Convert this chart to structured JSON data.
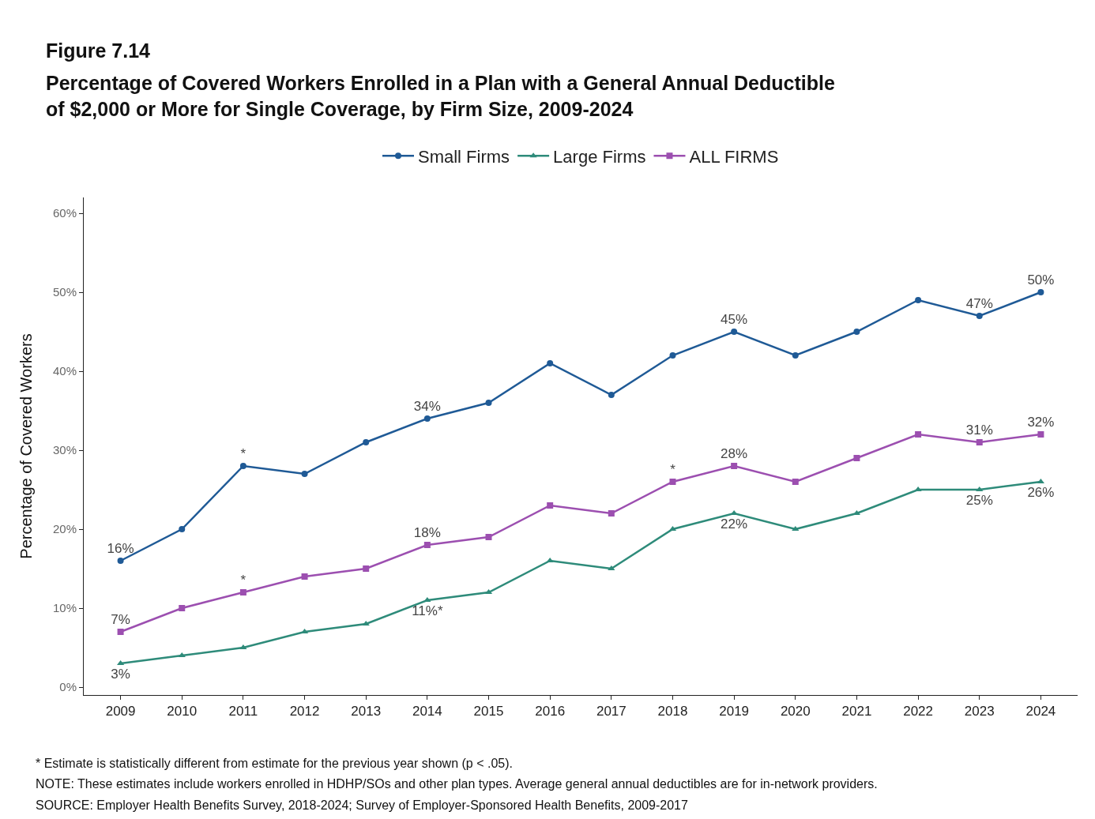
{
  "chart_data": {
    "type": "line",
    "title": "Figure 7.14",
    "subtitle": "Percentage of Covered Workers Enrolled in a Plan with a General Annual Deductible of $2,000 or More for Single Coverage, by Firm Size, 2009-2024",
    "ylabel": "Percentage of Covered Workers",
    "categories": [
      "2009",
      "2010",
      "2011",
      "2012",
      "2013",
      "2014",
      "2015",
      "2016",
      "2017",
      "2018",
      "2019",
      "2020",
      "2021",
      "2022",
      "2023",
      "2024"
    ],
    "series": [
      {
        "name": "Small Firms",
        "color": "#1f5a96",
        "marker": "circle",
        "values": [
          16,
          20,
          28,
          27,
          31,
          34,
          36,
          41,
          37,
          42,
          45,
          42,
          45,
          49,
          47,
          50
        ],
        "value_labels": [
          "16%",
          null,
          "*",
          null,
          null,
          "34%",
          null,
          null,
          null,
          null,
          "45%",
          null,
          null,
          null,
          "47%",
          "50%"
        ]
      },
      {
        "name": "Large Firms",
        "color": "#2e8b7a",
        "marker": "triangle",
        "values": [
          3,
          4,
          5,
          7,
          8,
          11,
          12,
          16,
          15,
          20,
          22,
          20,
          22,
          25,
          25,
          26
        ],
        "value_labels": [
          "3%",
          null,
          null,
          null,
          null,
          "11%*",
          null,
          null,
          null,
          null,
          "22%",
          null,
          null,
          null,
          "25%",
          "26%"
        ]
      },
      {
        "name": "ALL FIRMS",
        "color": "#9c4fb0",
        "marker": "square",
        "values": [
          7,
          10,
          12,
          14,
          15,
          18,
          19,
          23,
          22,
          26,
          28,
          26,
          29,
          32,
          31,
          32
        ],
        "value_labels": [
          "7%",
          null,
          "*",
          null,
          null,
          "18%",
          null,
          null,
          null,
          "*",
          "28%",
          null,
          null,
          null,
          "31%",
          "32%"
        ]
      }
    ],
    "ylim": [
      -1,
      62
    ],
    "yticks": [
      {
        "value": 0,
        "label": "0%"
      },
      {
        "value": 10,
        "label": "10%"
      },
      {
        "value": 20,
        "label": "20%"
      },
      {
        "value": 30,
        "label": "30%"
      },
      {
        "value": 40,
        "label": "40%"
      },
      {
        "value": 50,
        "label": "50%"
      },
      {
        "value": 60,
        "label": "60%"
      }
    ],
    "grid": false,
    "legend": "top",
    "line_style": "solid",
    "annotations": [
      "* Estimate is statistically different from estimate for the previous year shown (p < .05).",
      "NOTE: These estimates include workers enrolled in HDHP/SOs and other plan types. Average general annual deductibles are for in-network providers.",
      "SOURCE: Employer Health Benefits Survey, 2018-2024; Survey of Employer-Sponsored Health Benefits, 2009-2017"
    ]
  }
}
